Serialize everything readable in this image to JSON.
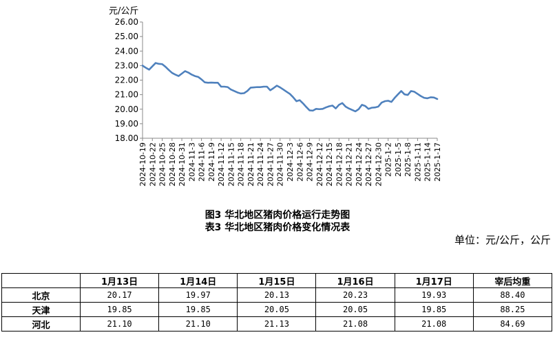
{
  "chart_data": {
    "type": "line",
    "ylabel": "元/公斤",
    "ylim": [
      18,
      26
    ],
    "yticks": [
      "18.00",
      "19.00",
      "20.00",
      "21.00",
      "22.00",
      "23.00",
      "24.00",
      "25.00",
      "26.00"
    ],
    "grid": false,
    "x": [
      "2024-10-19",
      "2024-10-20",
      "2024-10-21",
      "2024-10-22",
      "2024-10-23",
      "2024-10-24",
      "2024-10-25",
      "2024-10-26",
      "2024-10-27",
      "2024-10-28",
      "2024-10-29",
      "2024-10-30",
      "2024-10-31",
      "2024-11-1",
      "2024-11-2",
      "2024-11-3",
      "2024-11-4",
      "2024-11-5",
      "2024-11-6",
      "2024-11-7",
      "2024-11-8",
      "2024-11-9",
      "2024-11-10",
      "2024-11-11",
      "2024-11-12",
      "2024-11-13",
      "2024-11-14",
      "2024-11-15",
      "2024-11-16",
      "2024-11-17",
      "2024-11-18",
      "2024-11-19",
      "2024-11-20",
      "2024-11-21",
      "2024-11-22",
      "2024-11-23",
      "2024-11-24",
      "2024-11-25",
      "2024-11-26",
      "2024-11-27",
      "2024-11-28",
      "2024-11-29",
      "2024-11-30",
      "2024-12-1",
      "2024-12-2",
      "2024-12-3",
      "2024-12-4",
      "2024-12-5",
      "2024-12-6",
      "2024-12-7",
      "2024-12-8",
      "2024-12-9",
      "2024-12-10",
      "2024-12-11",
      "2024-12-12",
      "2024-12-13",
      "2024-12-14",
      "2024-12-15",
      "2024-12-16",
      "2024-12-17",
      "2024-12-18",
      "2024-12-19",
      "2024-12-20",
      "2024-12-21",
      "2024-12-22",
      "2024-12-23",
      "2024-12-24",
      "2024-12-25",
      "2024-12-26",
      "2024-12-27",
      "2024-12-28",
      "2024-12-29",
      "2024-12-30",
      "2024-12-31",
      "2025-1-1",
      "2025-1-2",
      "2025-1-3",
      "2025-1-4",
      "2025-1-5",
      "2025-1-6",
      "2025-1-7",
      "2025-1-8",
      "2025-1-9",
      "2025-1-10",
      "2025-1-11",
      "2025-1-12",
      "2025-1-13",
      "2025-1-14",
      "2025-1-15",
      "2025-1-16",
      "2025-1-17"
    ],
    "xtick_labels": [
      "2024-10-19",
      "2024-10-22",
      "2024-10-25",
      "2024-10-28",
      "2024-10-31",
      "2024-11-3",
      "2024-11-6",
      "2024-11-9",
      "2024-11-12",
      "2024-11-15",
      "2024-11-18",
      "2024-11-21",
      "2024-11-24",
      "2024-11-27",
      "2024-11-30",
      "2024-12-3",
      "2024-12-6",
      "2024-12-9",
      "2024-12-12",
      "2024-12-15",
      "2024-12-18",
      "2024-12-21",
      "2024-12-24",
      "2024-12-27",
      "2024-12-30",
      "2025-1-2",
      "2025-1-5",
      "2025-1-8",
      "2025-1-11",
      "2025-1-14",
      "2025-1-17"
    ],
    "series": [
      {
        "color": "#4f81bd",
        "values": [
          23.0,
          22.85,
          22.72,
          22.95,
          23.18,
          23.12,
          23.1,
          22.92,
          22.7,
          22.5,
          22.38,
          22.28,
          22.45,
          22.62,
          22.52,
          22.38,
          22.28,
          22.22,
          22.05,
          21.85,
          21.82,
          21.83,
          21.82,
          21.82,
          21.55,
          21.55,
          21.52,
          21.35,
          21.25,
          21.15,
          21.08,
          21.1,
          21.25,
          21.48,
          21.5,
          21.52,
          21.52,
          21.55,
          21.55,
          21.3,
          21.45,
          21.62,
          21.5,
          21.35,
          21.2,
          21.05,
          20.82,
          20.55,
          20.62,
          20.4,
          20.15,
          19.92,
          19.9,
          20.02,
          20.0,
          20.02,
          20.12,
          20.2,
          20.25,
          20.05,
          20.3,
          20.42,
          20.18,
          20.05,
          19.95,
          19.85,
          20.0,
          20.3,
          20.22,
          20.02,
          20.1,
          20.12,
          20.18,
          20.45,
          20.55,
          20.58,
          20.5,
          20.78,
          21.02,
          21.25,
          21.02,
          20.98,
          21.25,
          21.2,
          21.05,
          20.9,
          20.78,
          20.75,
          20.82,
          20.8,
          20.7
        ]
      }
    ]
  },
  "captions": {
    "figure": "图3 华北地区猪肉价格运行走势图",
    "table": "表3 华北地区猪肉价格变化情况表"
  },
  "unit": "单位：元/公斤，公斤",
  "table": {
    "corner": "",
    "headers": [
      "1月13日",
      "1月14日",
      "1月15日",
      "1月16日",
      "1月17日",
      "宰后均重"
    ],
    "rows": [
      {
        "region": "北京",
        "values": [
          "20.17",
          "19.97",
          "20.13",
          "20.23",
          "19.93",
          "88.40"
        ]
      },
      {
        "region": "天津",
        "values": [
          "19.85",
          "19.85",
          "20.05",
          "20.05",
          "19.85",
          "88.25"
        ]
      },
      {
        "region": "河北",
        "values": [
          "21.10",
          "21.10",
          "21.13",
          "21.08",
          "21.08",
          "84.69"
        ]
      }
    ]
  }
}
